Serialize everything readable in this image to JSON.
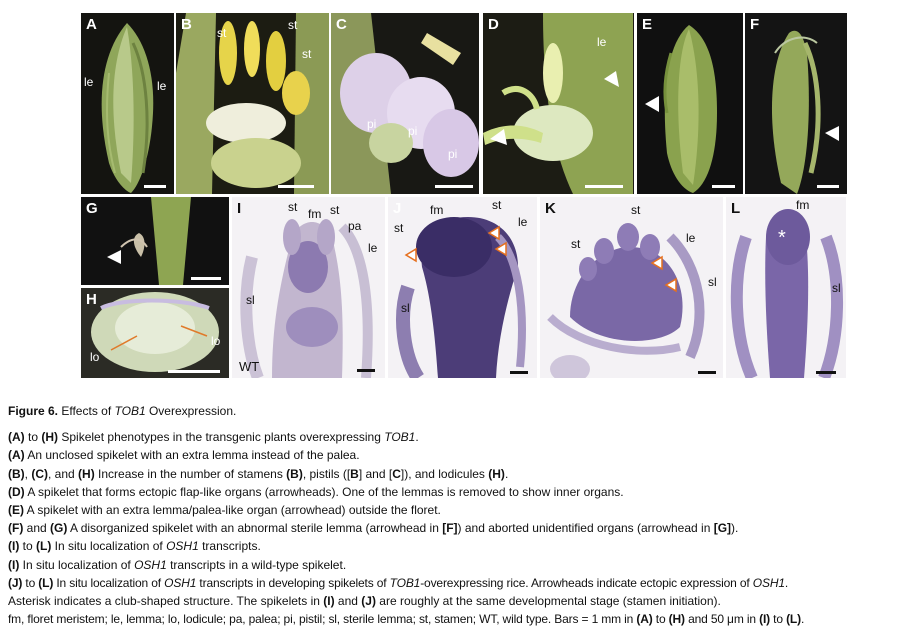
{
  "figure": {
    "panels": [
      {
        "id": "A",
        "labels": [
          "le",
          "le"
        ]
      },
      {
        "id": "B",
        "labels": [
          "st",
          "st",
          "st"
        ]
      },
      {
        "id": "C",
        "labels": [
          "pi",
          "pi",
          "pi"
        ]
      },
      {
        "id": "D",
        "labels": [
          "le"
        ]
      },
      {
        "id": "E",
        "labels": []
      },
      {
        "id": "F",
        "labels": []
      },
      {
        "id": "G",
        "labels": []
      },
      {
        "id": "H",
        "labels": [
          "lo",
          "lo"
        ]
      },
      {
        "id": "I",
        "labels": [
          "st",
          "fm",
          "st",
          "pa",
          "le",
          "sl",
          "WT"
        ]
      },
      {
        "id": "J",
        "labels": [
          "fm",
          "st",
          "le",
          "st",
          "sl"
        ]
      },
      {
        "id": "K",
        "labels": [
          "st",
          "st",
          "le",
          "sl"
        ]
      },
      {
        "id": "L",
        "labels": [
          "fm",
          "*",
          "sl"
        ]
      }
    ]
  },
  "caption": {
    "title_prefix": "Figure 6.",
    "title_text": " Effects of ",
    "title_gene": "TOB1",
    "title_suffix": " Overexpression.",
    "line1": {
      "ref": "(A)",
      "mid": " to ",
      "ref2": "(H)",
      "text": " Spikelet phenotypes in the transgenic plants overexpressing ",
      "gene": "TOB1",
      "end": "."
    },
    "line2": {
      "ref": "(A)",
      "text": " An unclosed spikelet with an extra lemma instead of the palea."
    },
    "line3": {
      "ref": "(B)",
      "sep1": ", ",
      "ref2": "(C)",
      "sep2": ", and ",
      "ref3": "(H)",
      "t1": " Increase in the number of stamens ",
      "r1": "(B)",
      "t2": ", pistils ([",
      "r2": "B",
      "t3": "] and [",
      "r3": "C",
      "t4": "]), and lodicules ",
      "r4": "(H)",
      "t5": "."
    },
    "line4": {
      "ref": "(D)",
      "text": " A spikelet that forms ectopic flap-like organs (arrowheads). One of the lemmas is removed to show inner organs."
    },
    "line5": {
      "ref": "(E)",
      "text": " A spikelet with an extra lemma/palea-like organ (arrowhead) outside the floret."
    },
    "line6": {
      "ref": "(F)",
      "mid": " and ",
      "ref2": "(G)",
      "t1": " A disorganized spikelet with an abnormal sterile lemma (arrowhead in ",
      "r1": "[F]",
      "t2": ") and aborted unidentified organs (arrowhead in ",
      "r2": "[G]",
      "t3": ")."
    },
    "line7": {
      "ref": "(I)",
      "mid": " to ",
      "ref2": "(L)",
      "t1": " In situ localization of ",
      "gene": "OSH1",
      "t2": " transcripts."
    },
    "line8": {
      "ref": "(I)",
      "t1": " In situ localization of ",
      "gene": "OSH1",
      "t2": " transcripts in a wild-type spikelet."
    },
    "line9": {
      "ref": "(J)",
      "mid": " to ",
      "ref2": "(L)",
      "t1": " In situ localization of ",
      "gene": "OSH1",
      "t2": " transcripts in developing spikelets of ",
      "gene2": "TOB1",
      "t3": "-overexpressing rice. Arrowheads indicate ectopic expression of ",
      "gene3": "OSH1",
      "t4": "."
    },
    "line10": {
      "t1": "Asterisk indicates a club-shaped structure. The spikelets in ",
      "r1": "(I)",
      "t2": " and ",
      "r2": "(J)",
      "t3": " are roughly at the same developmental stage (stamen initiation)."
    },
    "line11": {
      "t1": "fm, floret meristem; le, lemma; lo, lodicule; pa, palea; pi, pistil; sl, sterile lemma; st, stamen; WT, wild type. Bars = 1 mm in ",
      "r1": "(A)",
      "t2": " to ",
      "r2": "(H)",
      "t3": " and 50 μm in ",
      "r3": "(I)",
      "t4": " to ",
      "r4": "(L)",
      "t5": "."
    }
  }
}
